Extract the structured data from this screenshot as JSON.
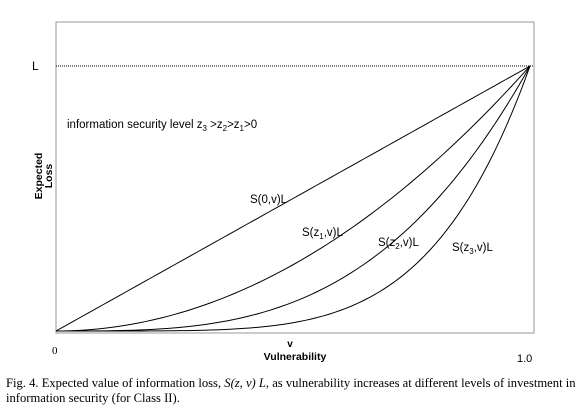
{
  "chart_data": {
    "type": "line",
    "xlabel": "Vulnerability",
    "ylabel": "Expected Loss",
    "x_axis_symbol": "v",
    "x_ticks": [
      "0",
      "1.0"
    ],
    "y_tick_label": "L",
    "xlim": [
      0,
      1.0
    ],
    "ylim": [
      0,
      1.0
    ],
    "reference_line": {
      "label": "L",
      "y": 1.0,
      "style": "dotted"
    },
    "annotation": {
      "text": "information security level z",
      "order": [
        "3",
        " >z",
        "2",
        ">z",
        "1",
        ">0"
      ]
    },
    "series": [
      {
        "label_base": "S(",
        "label_sub": "",
        "label_tail": "0,v)L",
        "exponent": 1.0
      },
      {
        "label_base": "S(z",
        "label_sub": "1",
        "label_tail": ",v)L",
        "exponent": 2.0
      },
      {
        "label_base": "S(z",
        "label_sub": "2",
        "label_tail": ",v)L",
        "exponent": 3.2
      },
      {
        "label_base": "S(z",
        "label_sub": "3",
        "label_tail": ",v)L",
        "exponent": 5.0
      }
    ]
  },
  "caption": {
    "prefix": "Fig. 4.   Expected value of information loss, ",
    "formula": "S(z, v) L",
    "suffix": ", as vulnerability increases at different levels of investment in information security (for Class II)."
  }
}
